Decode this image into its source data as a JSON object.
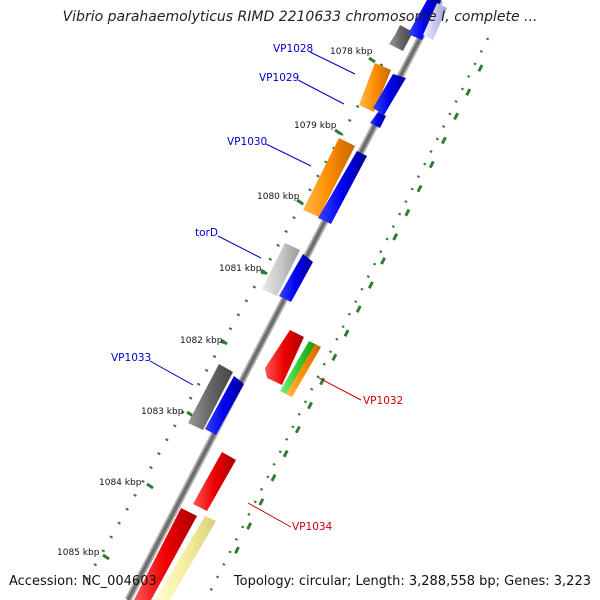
{
  "title": "Vibrio parahaemolyticus RIMD 2210633 chromosome I, complete ...",
  "footer": {
    "accession_text": "Accession: NC_004603",
    "summary_text": "Topology: circular; Length: 3,288,558 bp; Genes: 3,223"
  },
  "ticks": [
    "1078 kbp",
    "1079 kbp",
    "1080 kbp",
    "1081 kbp",
    "1082 kbp",
    "1083 kbp",
    "1084 kbp",
    "1085 kbp"
  ],
  "gene_labels": {
    "vp1028": "VP1028",
    "vp1029": "VP1029",
    "vp1030": "VP1030",
    "tord": "torD",
    "vp1033": "VP1033",
    "vp1032": "VP1032",
    "vp1034": "VP1034"
  },
  "colors": {
    "label_blue": "#0000cc",
    "label_red": "#cc0000",
    "dots_green": "#2e7d32",
    "backbone": "#777777"
  }
}
